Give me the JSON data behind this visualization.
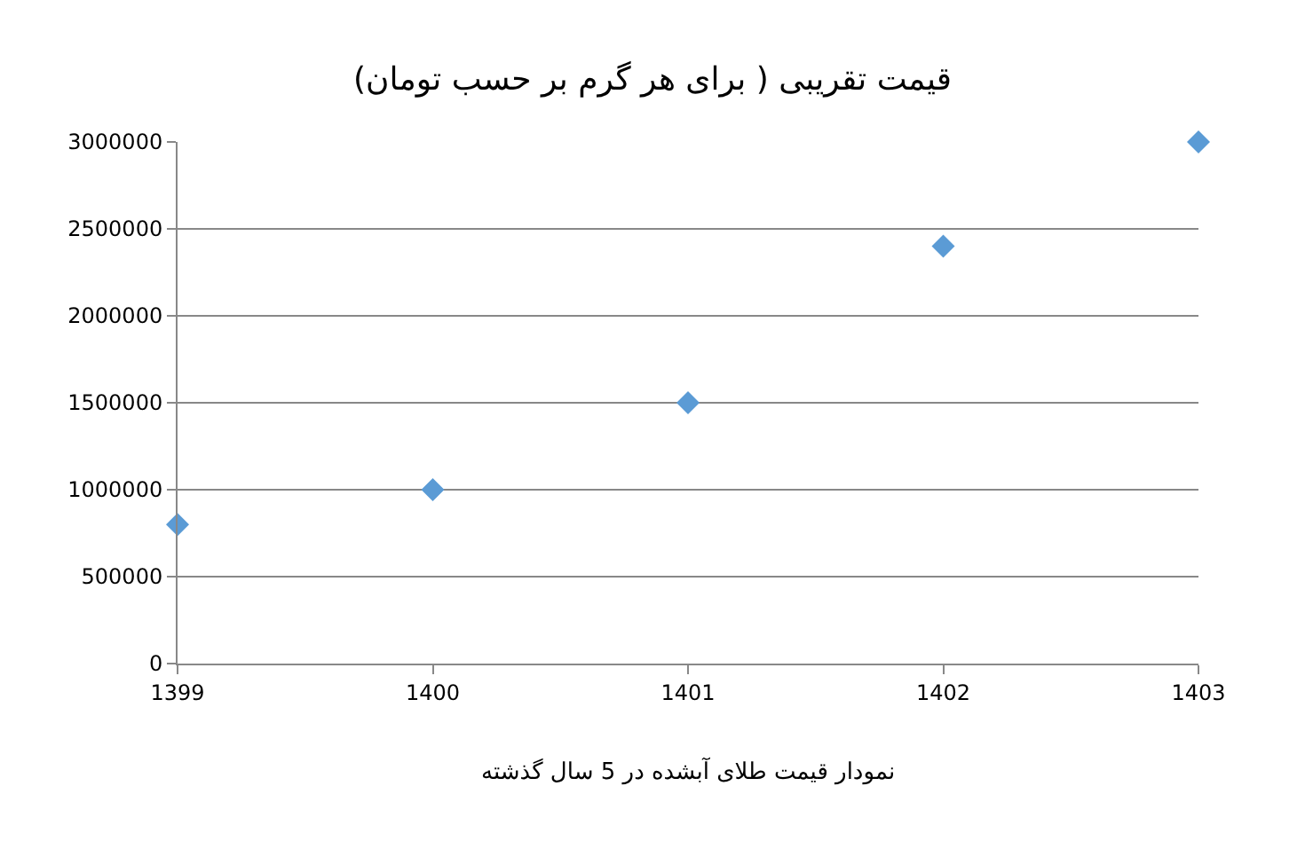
{
  "chart_data": {
    "type": "scatter",
    "title": "قیمت تقریبی ( برای هر گرم بر حسب تومان)",
    "x": [
      1399,
      1400,
      1401,
      1402,
      1403
    ],
    "series": [
      {
        "color": "#5b9bd5",
        "values": [
          800000,
          1000000,
          1500000,
          2400000,
          3000000
        ]
      }
    ],
    "xlim": [
      1399,
      1403
    ],
    "xticks": [
      1399,
      1400,
      1401,
      1402,
      1403
    ],
    "ylim": [
      0,
      3000000
    ],
    "yticks": [
      0,
      500000,
      1000000,
      1500000,
      2000000,
      2500000,
      3000000
    ],
    "grid": "y",
    "marker": "diamond",
    "legend": false,
    "annotations": [
      "نمودار قیمت طلای آبشده در 5 سال گذشته"
    ]
  }
}
